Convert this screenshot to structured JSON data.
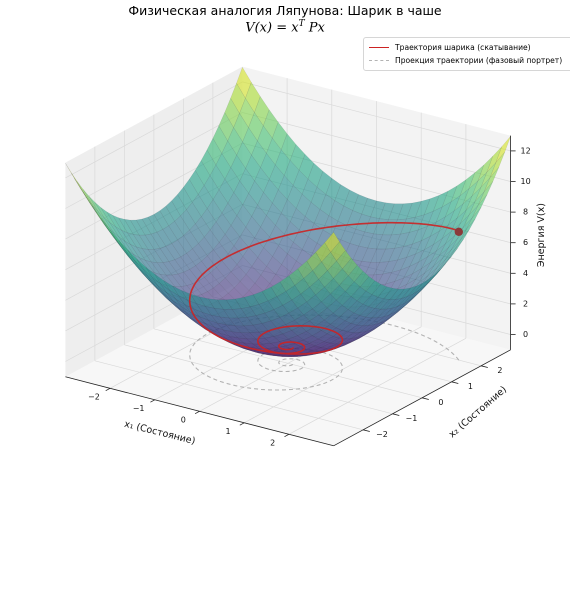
{
  "chart_data": {
    "type": "surface3d",
    "title": "Физическая аналогия Ляпунова: Шарик в чаше",
    "subtitle": "V(x) = x^T Px",
    "xlabel": "x₁ (Состояние)",
    "ylabel": "x₂ (Состояние)",
    "zlabel": "Энергия V(x)",
    "xlim": [
      -3,
      3
    ],
    "ylim": [
      -3,
      3
    ],
    "zlim": [
      -1,
      13
    ],
    "x_ticks": [
      -2,
      -1,
      0,
      1,
      2
    ],
    "y_ticks": [
      -2,
      -1,
      0,
      1,
      2
    ],
    "z_ticks": [
      0,
      2,
      4,
      6,
      8,
      10,
      12
    ],
    "x_tick_labels": [
      "−2",
      "−1",
      "0",
      "1",
      "2"
    ],
    "y_tick_labels": [
      "−2",
      "−1",
      "0",
      "1",
      "2"
    ],
    "z_tick_labels": [
      "0",
      "2",
      "4",
      "6",
      "8",
      "10",
      "12"
    ],
    "colormap": "viridis",
    "legend_position": "top-right",
    "grid": true,
    "surface": {
      "P": [
        [
          0.72,
          0.0
        ],
        [
          0.0,
          0.72
        ]
      ],
      "x_range": [
        -3,
        3
      ],
      "y_range": [
        -3,
        3
      ]
    },
    "trajectory": {
      "start": [
        2.5,
        2.0
      ],
      "decay": 0.16,
      "angular_rate": 0.85,
      "t_max": 22,
      "color": "#cc2222",
      "start_marker_color": "#8b3a3a"
    },
    "legend": [
      {
        "label": "Траектория шарика (скатывание)",
        "style": "solid",
        "color": "#cc2222"
      },
      {
        "label": "Проекция траектории (фазовый портрет)",
        "style": "dashed",
        "color": "#b3b3b3"
      }
    ]
  }
}
